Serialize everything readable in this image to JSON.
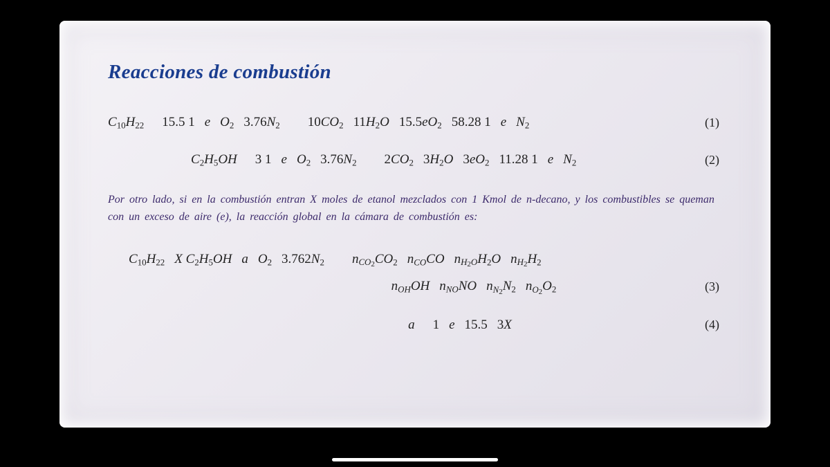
{
  "title_color": "#1a3d8f",
  "para_color": "#3c2a6b",
  "bg_color": "#000000",
  "slide_bg_from": "#f4f2f6",
  "slide_bg_to": "#e2dfe8",
  "title": "Reacciones de combustión",
  "eq1": {
    "formula_html": "C<sub>10</sub>H<sub>22</sub><span class='gapL'></span><span class='up'>15.5 1</span><span class='gap'></span>e<span class='gap'></span>O<sub>2</sub><span class='gap'></span><span class='up'>3.76</span>N<sub>2</sub><span class='gapL'></span><span class='gap'></span><span class='up'>10</span>CO<sub>2</sub><span class='gap'></span><span class='up'>11</span>H<sub>2</sub>O<span class='gap'></span><span class='up'>15.5</span>eO<sub>2</sub><span class='gap'></span><span class='up'>58.28 1</span><span class='gap'></span>e<span class='gap'></span>N<sub>2</sub>",
    "num": "(1)"
  },
  "eq2": {
    "formula_html": "C<sub>2</sub>H<sub>5</sub>OH<span class='gapL'></span><span class='up'>3 1</span><span class='gap'></span>e<span class='gap'></span>O<sub>2</sub><span class='gap'></span><span class='up'>3.76</span>N<sub>2</sub><span class='gapL'></span><span class='gap'></span><span class='up'>2</span>CO<sub>2</sub><span class='gap'></span><span class='up'>3</span>H<sub>2</sub>O<span class='gap'></span><span class='up'>3</span>eO<sub>2</sub><span class='gap'></span><span class='up'>11.28 1</span><span class='gap'></span>e<span class='gap'></span>N<sub>2</sub>",
    "num": "(2)"
  },
  "paragraph": "Por otro lado, si en la combustión entran X moles de etanol mezclados con 1 Kmol de n-decano, y los combustibles se queman con un exceso de aire (e), la reacción global en la cámara de combustión es:",
  "eq3a": {
    "formula_html": "C<sub>10</sub>H<sub>22</sub><span class='gap'></span>X C<sub>2</sub>H<sub>5</sub>OH<span class='gap'></span>a<span class='gap'></span>O<sub>2</sub><span class='gap'></span><span class='up'>3.762</span>N<sub>2</sub><span class='gapL'></span><span class='gap'></span><span class='subii'>n<span class='subi'>CO<sub>2</sub></span></span>CO<sub>2</sub><span class='gap'></span><span class='subii'>n<span class='subi'>CO</span></span>CO<span class='gap'></span><span class='subii'>n<span class='subi'>H<sub>2</sub>O</span></span>H<sub>2</sub>O<span class='gap'></span><span class='subii'>n<span class='subi'>H<sub>2</sub></span></span>H<sub>2</sub>"
  },
  "eq3b": {
    "formula_html": "<span class='subii'>n<span class='subi'>OH</span></span>OH<span class='gap'></span><span class='subii'>n<span class='subi'>NO</span></span>NO<span class='gap'></span><span class='subii'>n<span class='subi'>N<sub>2</sub></span></span>N<sub>2</sub><span class='gap'></span><span class='subii'>n<span class='subi'>O<sub>2</sub></span></span>O<sub>2</sub>",
    "num": "(3)"
  },
  "eq4": {
    "formula_html": "a<span class='gapL'></span><span class='up'>1</span><span class='gap'></span>e<span class='gap'></span><span class='up'>15.5</span><span class='gap'></span><span class='up'>3</span>X",
    "num": "(4)"
  }
}
